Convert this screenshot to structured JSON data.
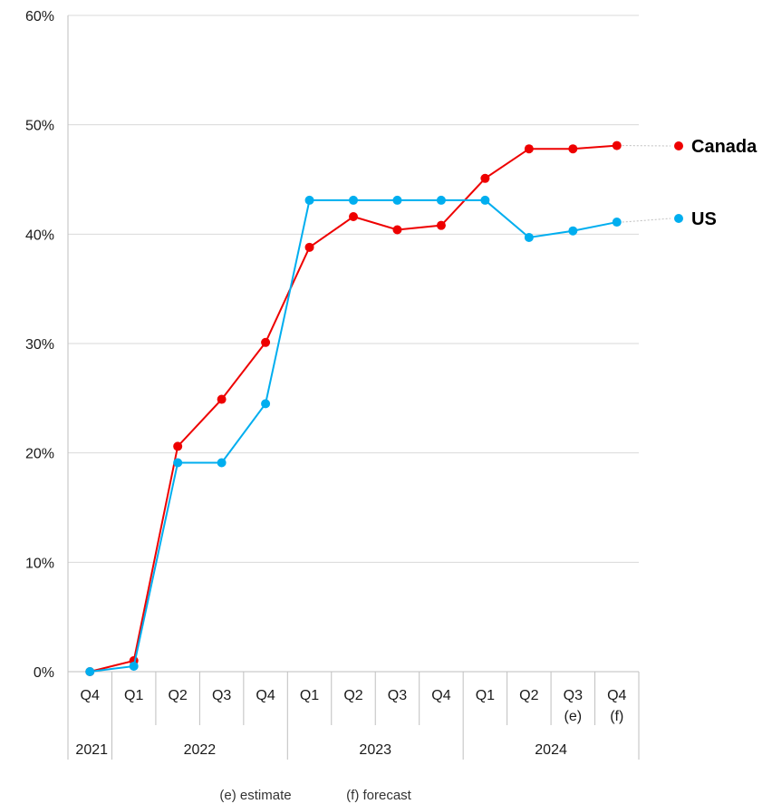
{
  "chart_data": {
    "type": "line",
    "x_quarters": [
      "Q4",
      "Q1",
      "Q2",
      "Q3",
      "Q4",
      "Q1",
      "Q2",
      "Q3",
      "Q4",
      "Q1",
      "Q2",
      "Q3",
      "Q4"
    ],
    "x_suffix": [
      "",
      "",
      "",
      "",
      "",
      "",
      "",
      "",
      "",
      "",
      "",
      "(e)",
      "(f)"
    ],
    "years": [
      {
        "label": "2021",
        "span": 1
      },
      {
        "label": "2022",
        "span": 4
      },
      {
        "label": "2023",
        "span": 4
      },
      {
        "label": "2024",
        "span": 4
      }
    ],
    "y_ticks": [
      "0%",
      "10%",
      "20%",
      "30%",
      "40%",
      "50%",
      "60%"
    ],
    "ylim": [
      0,
      60
    ],
    "grid": true,
    "series": [
      {
        "name": "Canada",
        "color": "#ee0000",
        "values": [
          0,
          1,
          20.6,
          24.9,
          30.1,
          38.8,
          41.6,
          40.4,
          40.8,
          45.1,
          47.8,
          47.8,
          48.1
        ]
      },
      {
        "name": "US",
        "color": "#00aeef",
        "values": [
          0,
          0.5,
          19.1,
          19.1,
          24.5,
          43.1,
          43.1,
          43.1,
          43.1,
          43.1,
          39.7,
          40.3,
          41.1
        ]
      }
    ],
    "legend_position": "right",
    "footnotes": [
      "(e) estimate",
      "(f) forecast"
    ]
  }
}
